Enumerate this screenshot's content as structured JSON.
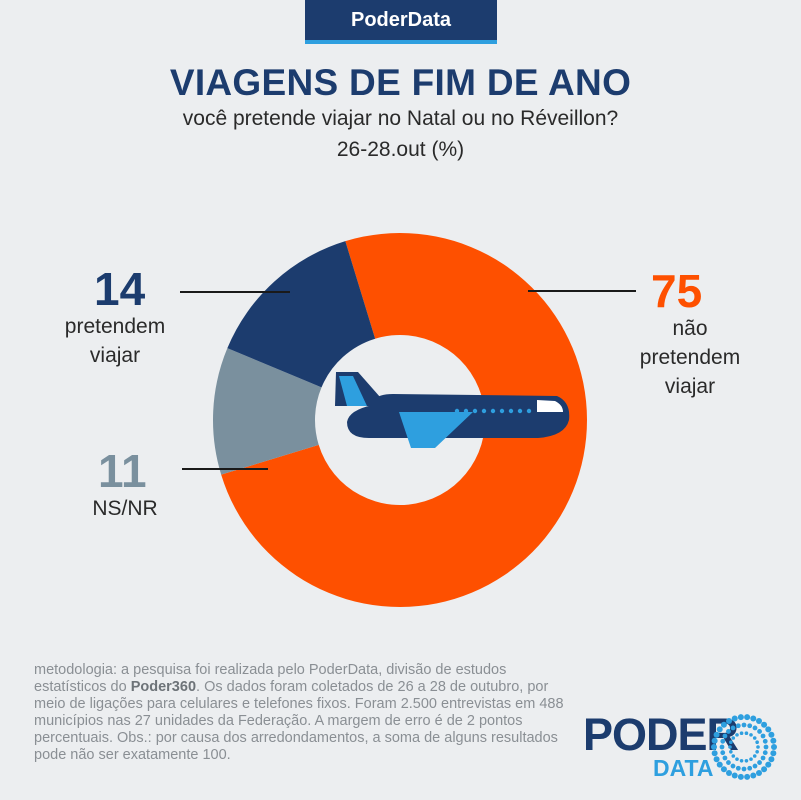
{
  "brand": {
    "tab_label": "PoderData"
  },
  "header": {
    "title": "VIAGENS DE FIM DE ANO",
    "subtitle": "você pretende viajar no Natal ou no Réveillon?",
    "date": "26-28.out  (%)"
  },
  "chart_data": {
    "type": "pie",
    "variant": "donut",
    "title": "VIAGENS DE FIM DE ANO",
    "subtitle": "você pretende viajar no Natal ou no Réveillon?",
    "unit": "%",
    "slices": [
      {
        "label": "não pretendem viajar",
        "value": 75,
        "color": "#fe5000"
      },
      {
        "label": "NS/NR",
        "value": 11,
        "color": "#7a909e"
      },
      {
        "label": "pretendem viajar",
        "value": 14,
        "color": "#1c3c6e"
      }
    ],
    "center_icon": "airplane-icon"
  },
  "callouts": {
    "nao": {
      "value": "75",
      "label_lines": [
        "não",
        "pretendem",
        "viajar"
      ]
    },
    "sim": {
      "value": "14",
      "label_lines": [
        "pretendem",
        "viajar"
      ]
    },
    "nsnr": {
      "value": "11",
      "label_lines": [
        "NS/NR"
      ]
    }
  },
  "footer": {
    "methodology_prefix": "metodologia: a pesquisa foi realizada pelo PoderData, divisão de estudos estatísticos do ",
    "methodology_bold": "Poder360",
    "methodology_suffix": ". Os dados foram coletados de 26 a 28 de outubro, por meio de ligações para celulares e telefones fixos. Foram 2.500 entrevistas em 488 municípios nas 27 unidades da Federação. A margem de erro é de 2 pontos percentuais. Obs.: por causa dos arredondamentos, a soma de alguns resultados pode não ser exatamente 100."
  },
  "logo": {
    "word1": "PODER",
    "word2": "DATA"
  },
  "colors": {
    "navy": "#1c3c6e",
    "orange": "#fe5000",
    "gray": "#7a909e",
    "light_blue": "#2e9fdf",
    "background": "#eceef0"
  }
}
